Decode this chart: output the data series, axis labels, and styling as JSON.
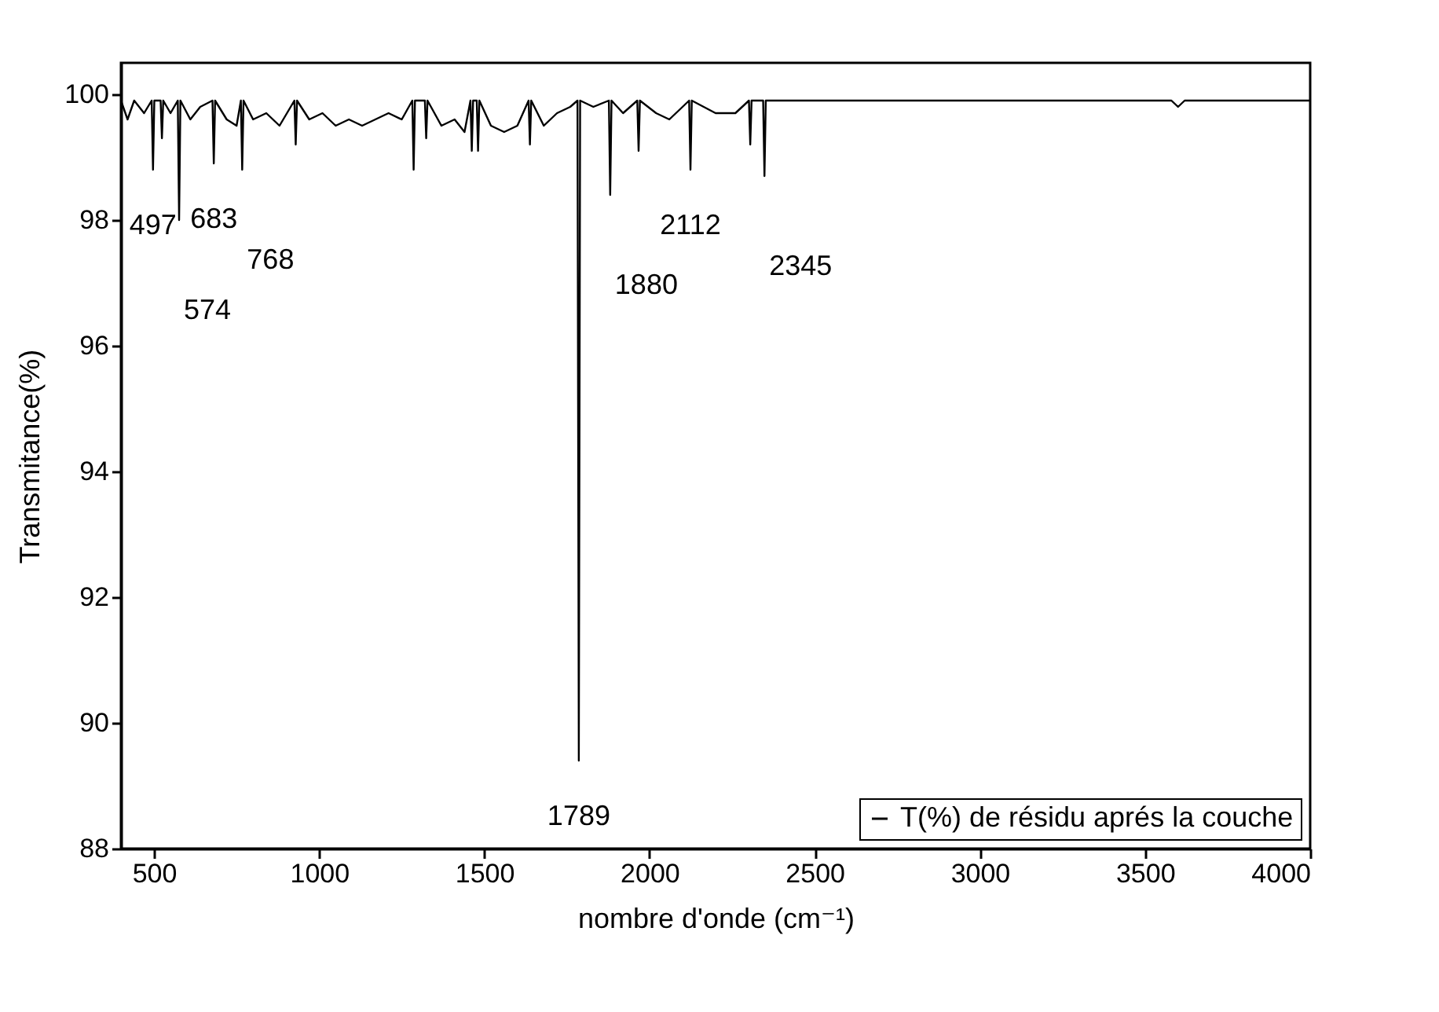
{
  "chart_data": {
    "type": "line",
    "xlabel": "nombre d'onde (cm⁻¹)",
    "ylabel": "Transmitance(%)",
    "x": [
      400,
      420,
      440,
      470,
      493,
      497,
      501,
      520,
      524,
      528,
      550,
      572,
      576,
      580,
      610,
      640,
      677,
      681,
      685,
      720,
      750,
      763,
      767,
      771,
      800,
      840,
      880,
      925,
      929,
      933,
      970,
      1010,
      1050,
      1090,
      1130,
      1170,
      1210,
      1250,
      1282,
      1286,
      1290,
      1320,
      1324,
      1328,
      1370,
      1410,
      1440,
      1458,
      1462,
      1466,
      1477,
      1481,
      1485,
      1520,
      1560,
      1600,
      1634,
      1638,
      1642,
      1680,
      1720,
      1760,
      1782,
      1786,
      1790,
      1830,
      1877,
      1881,
      1885,
      1920,
      1963,
      1967,
      1971,
      2020,
      2060,
      2100,
      2120,
      2124,
      2128,
      2200,
      2260,
      2301,
      2305,
      2309,
      2344,
      2348,
      2352,
      2400,
      3000,
      3580,
      3600,
      3620,
      4000
    ],
    "series": [
      {
        "name": "T(%) de résidu aprés la couche",
        "color": "#000000",
        "values": [
          99.9,
          99.6,
          99.9,
          99.7,
          99.9,
          98.8,
          99.9,
          99.9,
          99.3,
          99.9,
          99.7,
          99.9,
          98.0,
          99.9,
          99.6,
          99.8,
          99.9,
          98.9,
          99.9,
          99.6,
          99.5,
          99.9,
          98.8,
          99.9,
          99.6,
          99.7,
          99.5,
          99.9,
          99.2,
          99.9,
          99.6,
          99.7,
          99.5,
          99.6,
          99.5,
          99.6,
          99.7,
          99.6,
          99.9,
          98.8,
          99.9,
          99.9,
          99.3,
          99.9,
          99.5,
          99.6,
          99.4,
          99.9,
          99.1,
          99.9,
          99.9,
          99.1,
          99.9,
          99.5,
          99.4,
          99.5,
          99.9,
          99.2,
          99.9,
          99.5,
          99.7,
          99.8,
          99.9,
          89.4,
          99.9,
          99.8,
          99.9,
          98.4,
          99.9,
          99.7,
          99.9,
          99.1,
          99.9,
          99.7,
          99.6,
          99.8,
          99.9,
          98.8,
          99.9,
          99.7,
          99.7,
          99.9,
          99.2,
          99.9,
          99.9,
          98.7,
          99.9,
          99.9,
          99.9,
          99.9,
          99.8,
          99.9,
          99.9
        ]
      }
    ],
    "xlim": [
      400,
      4000
    ],
    "xticks": [
      500,
      1000,
      1500,
      2000,
      2500,
      3000,
      3500,
      4000
    ],
    "ylim": [
      88,
      100.5
    ],
    "yticks": [
      88,
      90,
      92,
      94,
      96,
      98,
      100
    ],
    "grid": false,
    "legend": "bottom right",
    "annotations": [
      {
        "text": "497",
        "x": 497,
        "y": 98.8
      },
      {
        "text": "574",
        "x": 576,
        "y": 98.0
      },
      {
        "text": "683",
        "x": 681,
        "y": 98.9
      },
      {
        "text": "768",
        "x": 767,
        "y": 98.8
      },
      {
        "text": "1789",
        "x": 1786,
        "y": 89.4
      },
      {
        "text": "1880",
        "x": 1881,
        "y": 98.4
      },
      {
        "text": "2112",
        "x": 2124,
        "y": 98.8
      },
      {
        "text": "2345",
        "x": 2348,
        "y": 98.7
      }
    ]
  }
}
